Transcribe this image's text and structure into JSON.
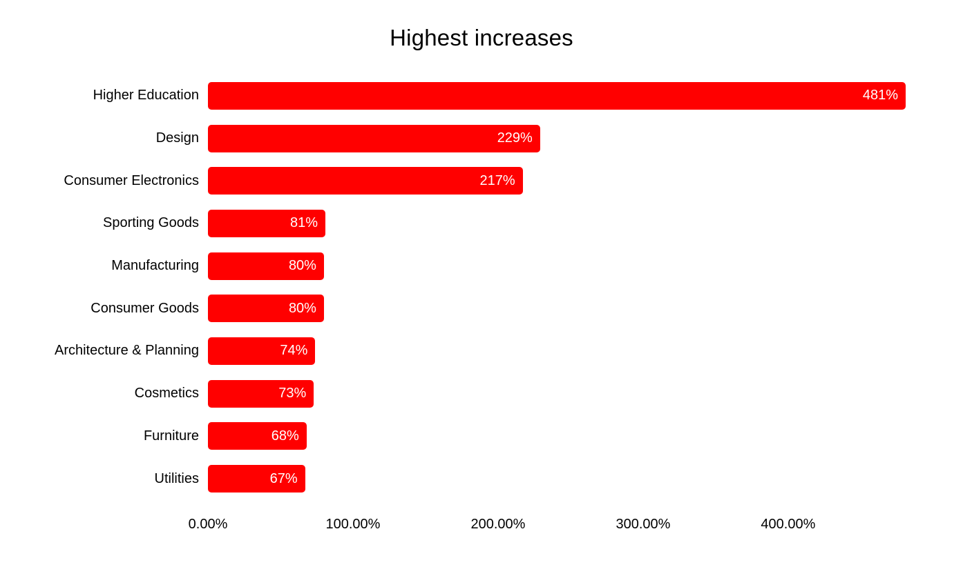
{
  "chart_data": {
    "type": "bar",
    "orientation": "horizontal",
    "title": "Highest increases",
    "categories": [
      "Higher Education",
      "Design",
      "Consumer Electronics",
      "Sporting Goods",
      "Manufacturing",
      "Consumer Goods",
      "Architecture & Planning",
      "Cosmetics",
      "Furniture",
      "Utilities"
    ],
    "values": [
      481,
      229,
      217,
      81,
      80,
      80,
      74,
      73,
      68,
      67
    ],
    "value_labels": [
      "481%",
      "229%",
      "217%",
      "81%",
      "80%",
      "80%",
      "74%",
      "73%",
      "68%",
      "67%"
    ],
    "x_ticks": [
      0,
      100,
      200,
      300,
      400
    ],
    "x_tick_labels": [
      "0.00%",
      "100.00%",
      "200.00%",
      "300.00%",
      "400.00%"
    ],
    "xlim": [
      0,
      481
    ],
    "xlabel": "",
    "ylabel": "",
    "grid": false,
    "legend": false,
    "colors": {
      "bar": "#ff0000",
      "value_label": "#ffffff",
      "category_label": "#000000",
      "background": "#ffffff"
    }
  }
}
